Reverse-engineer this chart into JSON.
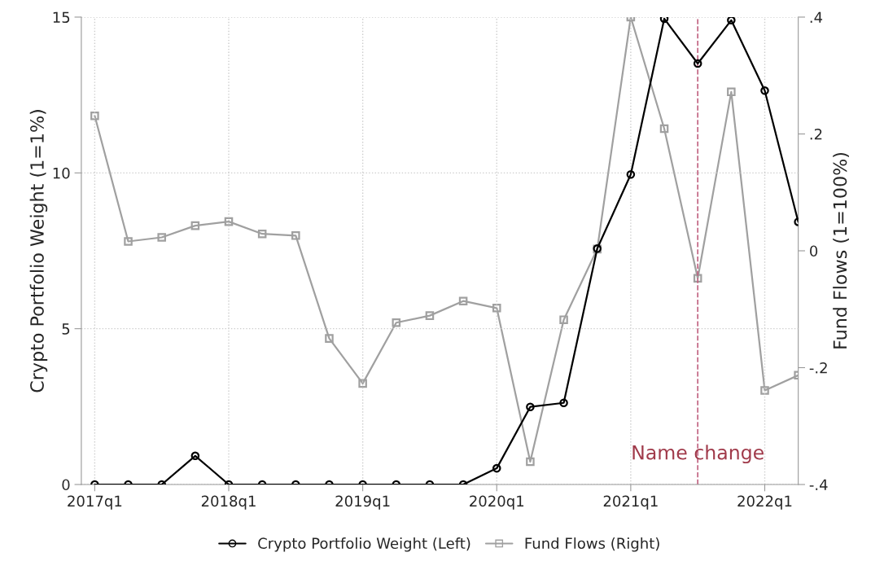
{
  "chart_data": {
    "type": "line",
    "categories": [
      "2017q1",
      null,
      null,
      null,
      "2018q1",
      null,
      null,
      null,
      "2019q1",
      null,
      null,
      null,
      "2020q1",
      null,
      null,
      null,
      "2021q1",
      null,
      null,
      null,
      "2022q1",
      null
    ],
    "series": [
      {
        "name": "Crypto Portfolio Weight (Left)",
        "color": "#000000",
        "marker": "circle",
        "values": [
          0,
          0,
          0,
          0.92,
          0,
          0,
          0,
          0,
          0,
          0,
          0,
          0,
          0.52,
          2.49,
          2.62,
          7.57,
          9.95,
          14.95,
          13.51,
          14.9,
          12.64,
          8.43
        ]
      },
      {
        "name": "Fund Flows (Right)",
        "color": "#a0a0a0",
        "marker": "square",
        "axis": "y2",
        "values": [
          0.231,
          0.016,
          0.023,
          0.043,
          0.05,
          0.029,
          0.026,
          -0.15,
          -0.227,
          -0.123,
          -0.111,
          -0.086,
          -0.098,
          -0.361,
          -0.118,
          0.003,
          0.4,
          0.209,
          -0.047,
          0.272,
          -0.239,
          -0.213
        ]
      }
    ],
    "ylabel": "Crypto Portfolio Weight (1=1%)",
    "y2label": "Fund Flows (1=100%)",
    "ylim": [
      0,
      15
    ],
    "yticks": [
      0,
      5,
      10,
      15
    ],
    "y2lim": [
      -0.4,
      0.4
    ],
    "y2ticks": [
      {
        "value": -0.4,
        "label": "-.4"
      },
      {
        "value": -0.2,
        "label": "-.2"
      },
      {
        "value": 0,
        "label": "0"
      },
      {
        "value": 0.2,
        "label": ".2"
      },
      {
        "value": 0.4,
        "label": ".4"
      }
    ],
    "annotations": [
      "Name change"
    ],
    "grid": true,
    "legend": "bottom",
    "line_style": "solid"
  }
}
